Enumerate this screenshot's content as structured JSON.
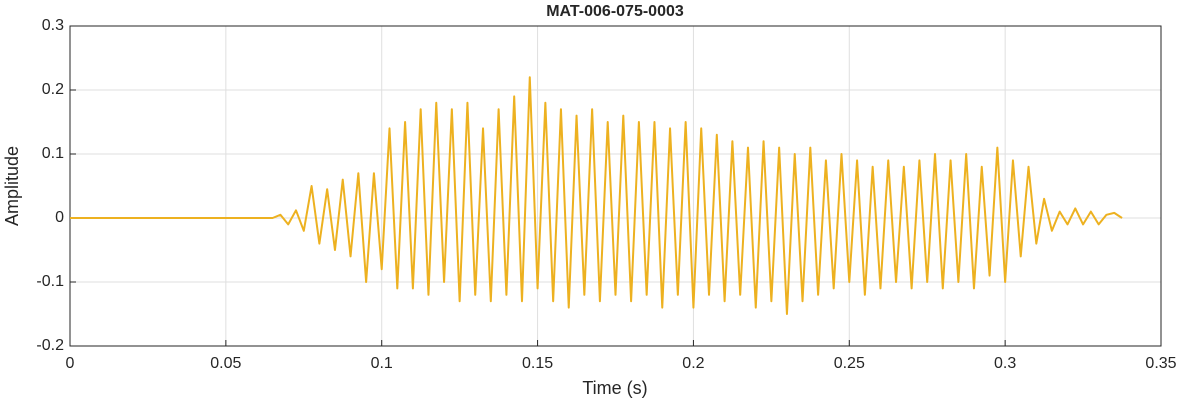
{
  "chart_data": {
    "type": "line",
    "title": "MAT-006-075-0003",
    "xlabel": "Time (s)",
    "ylabel": "Amplitude",
    "color": "#EDB120",
    "grid": true,
    "xlim": [
      0,
      0.35
    ],
    "xticks": [
      0,
      0.05,
      0.1,
      0.15,
      0.2,
      0.25,
      0.3,
      0.35
    ],
    "ylim": [
      -0.2,
      0.3
    ],
    "yticks": [
      -0.2,
      -0.1,
      0,
      0.1,
      0.2,
      0.3
    ],
    "x": [
      0,
      0.065,
      0.0675,
      0.07,
      0.0725,
      0.075,
      0.0775,
      0.08,
      0.0825,
      0.085,
      0.0875,
      0.09,
      0.0925,
      0.095,
      0.0975,
      0.1,
      0.1025,
      0.105,
      0.1075,
      0.11,
      0.1125,
      0.115,
      0.1175,
      0.12,
      0.1225,
      0.125,
      0.1275,
      0.13,
      0.1325,
      0.135,
      0.1375,
      0.14,
      0.1425,
      0.145,
      0.1475,
      0.15,
      0.1525,
      0.155,
      0.1575,
      0.16,
      0.1625,
      0.165,
      0.1675,
      0.17,
      0.1725,
      0.175,
      0.1775,
      0.18,
      0.1825,
      0.185,
      0.1875,
      0.19,
      0.1925,
      0.195,
      0.1975,
      0.2,
      0.2025,
      0.205,
      0.2075,
      0.21,
      0.2125,
      0.215,
      0.2175,
      0.22,
      0.2225,
      0.225,
      0.2275,
      0.23,
      0.2325,
      0.235,
      0.2375,
      0.24,
      0.2425,
      0.245,
      0.2475,
      0.25,
      0.2525,
      0.255,
      0.2575,
      0.26,
      0.2625,
      0.265,
      0.2675,
      0.27,
      0.2725,
      0.275,
      0.2775,
      0.28,
      0.2825,
      0.285,
      0.2875,
      0.29,
      0.2925,
      0.295,
      0.2975,
      0.3,
      0.3025,
      0.305,
      0.3075,
      0.31,
      0.3125,
      0.315,
      0.3175,
      0.32,
      0.3225,
      0.325,
      0.3275,
      0.33,
      0.3325,
      0.335,
      0.3375
    ],
    "values": [
      0,
      0,
      0.005,
      -0.01,
      0.012,
      -0.02,
      0.05,
      -0.04,
      0.045,
      -0.05,
      0.06,
      -0.06,
      0.07,
      -0.1,
      0.07,
      -0.08,
      0.14,
      -0.11,
      0.15,
      -0.11,
      0.17,
      -0.12,
      0.18,
      -0.1,
      0.17,
      -0.13,
      0.18,
      -0.12,
      0.14,
      -0.13,
      0.17,
      -0.12,
      0.19,
      -0.13,
      0.22,
      -0.11,
      0.18,
      -0.13,
      0.17,
      -0.14,
      0.16,
      -0.12,
      0.17,
      -0.13,
      0.15,
      -0.12,
      0.16,
      -0.13,
      0.15,
      -0.12,
      0.15,
      -0.14,
      0.14,
      -0.12,
      0.15,
      -0.14,
      0.14,
      -0.12,
      0.13,
      -0.13,
      0.12,
      -0.12,
      0.11,
      -0.14,
      0.12,
      -0.13,
      0.11,
      -0.15,
      0.1,
      -0.13,
      0.11,
      -0.12,
      0.09,
      -0.11,
      0.1,
      -0.1,
      0.09,
      -0.12,
      0.08,
      -0.11,
      0.09,
      -0.1,
      0.08,
      -0.11,
      0.09,
      -0.1,
      0.1,
      -0.11,
      0.09,
      -0.1,
      0.1,
      -0.11,
      0.08,
      -0.09,
      0.11,
      -0.1,
      0.09,
      -0.06,
      0.08,
      -0.04,
      0.03,
      -0.02,
      0.01,
      -0.01,
      0.015,
      -0.01,
      0.01,
      -0.01,
      0.005,
      0.008,
      0
    ]
  }
}
